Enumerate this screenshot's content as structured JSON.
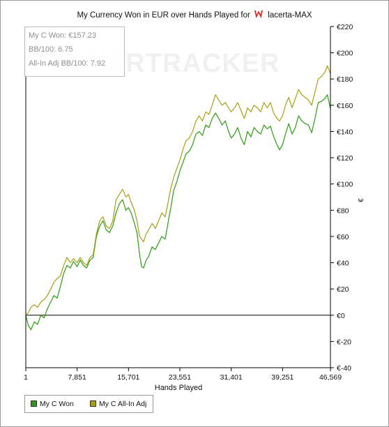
{
  "header": {
    "title_prefix": "My Currency Won in EUR over Hands Played for",
    "player_name": "lacerta-MAX"
  },
  "watermark": "POKERTRACKER",
  "stats": {
    "won": "My C Won: €157.23",
    "bb100": "BB/100: 6.75",
    "allin_bb100": "All-In Adj BB/100: 7.92"
  },
  "colors": {
    "won": "#2b9c12",
    "allin": "#a89e14",
    "axis": "#000000"
  },
  "chart_data": {
    "type": "line",
    "title": "My Currency Won in EUR over Hands Played for lacerta-MAX",
    "xlabel": "Hands Played",
    "ylabel": "€",
    "xlim": [
      1,
      46569
    ],
    "ylim": [
      -40,
      220
    ],
    "x_ticks": [
      1,
      7851,
      15701,
      23551,
      31401,
      39251,
      46569
    ],
    "x_tick_labels": [
      "1",
      "7,851",
      "15,701",
      "23,551",
      "31,401",
      "39,251",
      "46,569"
    ],
    "y_ticks": [
      -40,
      -20,
      0,
      20,
      40,
      60,
      80,
      100,
      120,
      140,
      160,
      180,
      200,
      220
    ],
    "y_tick_labels": [
      "€-40",
      "€-20",
      "€0",
      "€20",
      "€40",
      "€60",
      "€80",
      "€100",
      "€120",
      "€140",
      "€160",
      "€180",
      "€200",
      "€220"
    ],
    "legend_position": "bottom-left",
    "series": [
      {
        "name": "My C Won",
        "color": "#2b9c12",
        "points": [
          [
            1,
            0
          ],
          [
            400,
            -8
          ],
          [
            800,
            -11
          ],
          [
            1300,
            -5
          ],
          [
            1800,
            -7
          ],
          [
            2300,
            0
          ],
          [
            2800,
            -2
          ],
          [
            3300,
            5
          ],
          [
            3800,
            10
          ],
          [
            4300,
            15
          ],
          [
            4800,
            13
          ],
          [
            5300,
            22
          ],
          [
            5800,
            32
          ],
          [
            6300,
            38
          ],
          [
            6800,
            36
          ],
          [
            7300,
            41
          ],
          [
            7851,
            37
          ],
          [
            8300,
            42
          ],
          [
            8800,
            38
          ],
          [
            9300,
            36
          ],
          [
            9800,
            42
          ],
          [
            10300,
            44
          ],
          [
            10800,
            60
          ],
          [
            11300,
            68
          ],
          [
            11800,
            72
          ],
          [
            12300,
            65
          ],
          [
            12800,
            63
          ],
          [
            13300,
            68
          ],
          [
            13800,
            78
          ],
          [
            14300,
            85
          ],
          [
            14800,
            88
          ],
          [
            15300,
            80
          ],
          [
            15701,
            82
          ],
          [
            16100,
            78
          ],
          [
            16600,
            70
          ],
          [
            17000,
            63
          ],
          [
            17400,
            46
          ],
          [
            17700,
            37
          ],
          [
            18000,
            36
          ],
          [
            18400,
            42
          ],
          [
            18800,
            45
          ],
          [
            19300,
            52
          ],
          [
            19800,
            50
          ],
          [
            20300,
            55
          ],
          [
            20800,
            60
          ],
          [
            21300,
            58
          ],
          [
            21600,
            66
          ],
          [
            21900,
            75
          ],
          [
            22100,
            80
          ],
          [
            22600,
            95
          ],
          [
            23100,
            102
          ],
          [
            23551,
            110
          ],
          [
            24000,
            116
          ],
          [
            24500,
            123
          ],
          [
            25000,
            125
          ],
          [
            25500,
            130
          ],
          [
            26000,
            138
          ],
          [
            26500,
            140
          ],
          [
            27000,
            137
          ],
          [
            27500,
            145
          ],
          [
            28000,
            143
          ],
          [
            28500,
            150
          ],
          [
            29000,
            154
          ],
          [
            29500,
            150
          ],
          [
            30000,
            145
          ],
          [
            30500,
            148
          ],
          [
            31000,
            140
          ],
          [
            31401,
            135
          ],
          [
            31900,
            138
          ],
          [
            32400,
            143
          ],
          [
            32900,
            135
          ],
          [
            33400,
            130
          ],
          [
            33900,
            140
          ],
          [
            34400,
            136
          ],
          [
            34900,
            143
          ],
          [
            35400,
            140
          ],
          [
            35900,
            138
          ],
          [
            36400,
            145
          ],
          [
            36900,
            142
          ],
          [
            37400,
            144
          ],
          [
            37900,
            136
          ],
          [
            38400,
            130
          ],
          [
            38800,
            126
          ],
          [
            39251,
            130
          ],
          [
            39700,
            138
          ],
          [
            40200,
            146
          ],
          [
            40700,
            138
          ],
          [
            41200,
            143
          ],
          [
            41700,
            152
          ],
          [
            42200,
            148
          ],
          [
            42700,
            146
          ],
          [
            43200,
            145
          ],
          [
            43700,
            139
          ],
          [
            44200,
            150
          ],
          [
            44700,
            162
          ],
          [
            45200,
            163
          ],
          [
            45700,
            165
          ],
          [
            46100,
            168
          ],
          [
            46569,
            157.23
          ]
        ]
      },
      {
        "name": "My C All-In Adj",
        "color": "#a89e14",
        "points": [
          [
            1,
            0
          ],
          [
            400,
            2
          ],
          [
            800,
            6
          ],
          [
            1300,
            8
          ],
          [
            1800,
            6
          ],
          [
            2300,
            10
          ],
          [
            2800,
            12
          ],
          [
            3300,
            15
          ],
          [
            3800,
            20
          ],
          [
            4300,
            25
          ],
          [
            4800,
            28
          ],
          [
            5300,
            30
          ],
          [
            5800,
            38
          ],
          [
            6300,
            44
          ],
          [
            6800,
            40
          ],
          [
            7300,
            43
          ],
          [
            7851,
            40
          ],
          [
            8300,
            44
          ],
          [
            8800,
            40
          ],
          [
            9300,
            38
          ],
          [
            9800,
            44
          ],
          [
            10300,
            46
          ],
          [
            10800,
            62
          ],
          [
            11300,
            72
          ],
          [
            11800,
            75
          ],
          [
            12300,
            68
          ],
          [
            12800,
            66
          ],
          [
            13300,
            72
          ],
          [
            13800,
            88
          ],
          [
            14300,
            92
          ],
          [
            14800,
            96
          ],
          [
            15300,
            90
          ],
          [
            15701,
            92
          ],
          [
            16100,
            86
          ],
          [
            16600,
            80
          ],
          [
            17000,
            72
          ],
          [
            17400,
            60
          ],
          [
            17700,
            58
          ],
          [
            18000,
            56
          ],
          [
            18400,
            62
          ],
          [
            18800,
            65
          ],
          [
            19300,
            70
          ],
          [
            19800,
            66
          ],
          [
            20300,
            72
          ],
          [
            20800,
            78
          ],
          [
            21300,
            75
          ],
          [
            21600,
            82
          ],
          [
            21900,
            90
          ],
          [
            22100,
            95
          ],
          [
            22600,
            105
          ],
          [
            23100,
            112
          ],
          [
            23551,
            118
          ],
          [
            24000,
            126
          ],
          [
            24500,
            133
          ],
          [
            25000,
            135
          ],
          [
            25500,
            140
          ],
          [
            26000,
            148
          ],
          [
            26500,
            152
          ],
          [
            27000,
            148
          ],
          [
            27500,
            155
          ],
          [
            28000,
            153
          ],
          [
            28500,
            160
          ],
          [
            29000,
            168
          ],
          [
            29500,
            164
          ],
          [
            30000,
            160
          ],
          [
            30500,
            162
          ],
          [
            31000,
            158
          ],
          [
            31401,
            155
          ],
          [
            31900,
            158
          ],
          [
            32400,
            162
          ],
          [
            32900,
            156
          ],
          [
            33400,
            150
          ],
          [
            33900,
            158
          ],
          [
            34400,
            155
          ],
          [
            34900,
            160
          ],
          [
            35400,
            158
          ],
          [
            35900,
            155
          ],
          [
            36400,
            162
          ],
          [
            36900,
            158
          ],
          [
            37400,
            162
          ],
          [
            37900,
            154
          ],
          [
            38400,
            150
          ],
          [
            38800,
            148
          ],
          [
            39251,
            152
          ],
          [
            39700,
            160
          ],
          [
            40200,
            166
          ],
          [
            40700,
            158
          ],
          [
            41200,
            165
          ],
          [
            41700,
            172
          ],
          [
            42200,
            168
          ],
          [
            42700,
            166
          ],
          [
            43200,
            164
          ],
          [
            43700,
            160
          ],
          [
            44200,
            170
          ],
          [
            44700,
            180
          ],
          [
            45200,
            182
          ],
          [
            45700,
            185
          ],
          [
            46100,
            190
          ],
          [
            46569,
            184
          ]
        ]
      }
    ]
  }
}
